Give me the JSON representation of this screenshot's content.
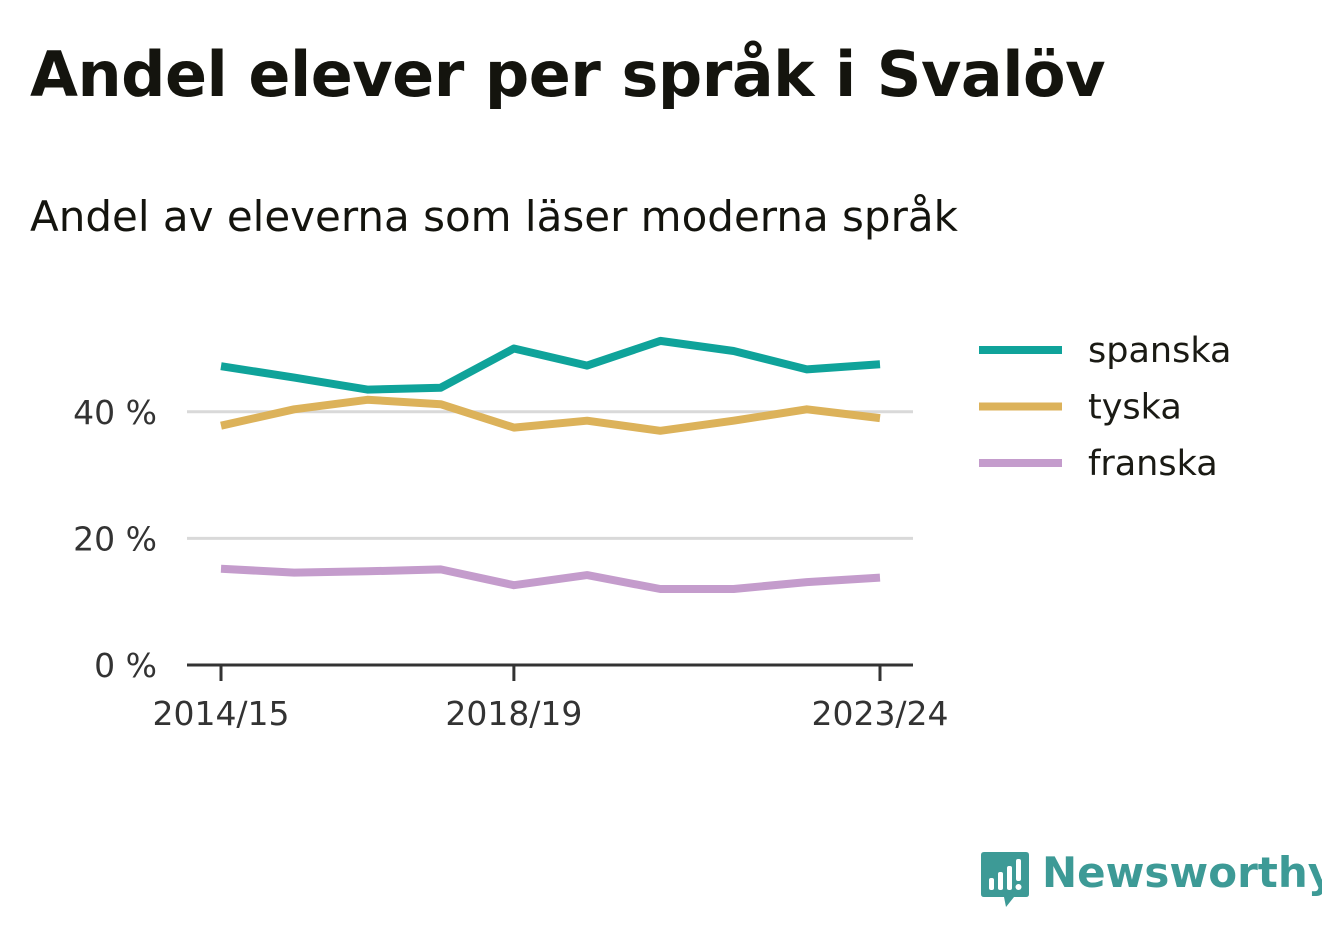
{
  "title": "Andel elever per språk i Svalöv",
  "subtitle": "Andel av eleverna som läser moderna språk",
  "brand": "Newsworthy",
  "colors": {
    "spanska": "#0fa39a",
    "tyska": "#dcb25a",
    "franska": "#c49ccc",
    "grid": "#d9d9d9",
    "axis": "#333333",
    "brand": "#3d9a96"
  },
  "chart_data": {
    "type": "line",
    "x": [
      "2014/15",
      "2015/16",
      "2016/17",
      "2017/18",
      "2018/19",
      "2019/20",
      "2020/21",
      "2021/22",
      "2022/23",
      "2023/24"
    ],
    "x_tick_labels": [
      "2014/15",
      "2018/19",
      "2023/24"
    ],
    "y_ticks": [
      0,
      20,
      40
    ],
    "y_tick_labels": [
      "0 %",
      "20 %",
      "40 %"
    ],
    "ylim": [
      0,
      55
    ],
    "grid": true,
    "legend_position": "right",
    "series": [
      {
        "name": "spanska",
        "values": [
          47.2,
          45.4,
          43.5,
          43.8,
          50.0,
          47.3,
          51.2,
          49.6,
          46.7,
          47.5
        ]
      },
      {
        "name": "tyska",
        "values": [
          37.8,
          40.4,
          41.9,
          41.2,
          37.5,
          38.6,
          37.0,
          38.6,
          40.4,
          39.0
        ]
      },
      {
        "name": "franska",
        "values": [
          15.2,
          14.6,
          14.8,
          15.1,
          12.6,
          14.2,
          12.0,
          12.0,
          13.1,
          13.8
        ]
      }
    ]
  }
}
